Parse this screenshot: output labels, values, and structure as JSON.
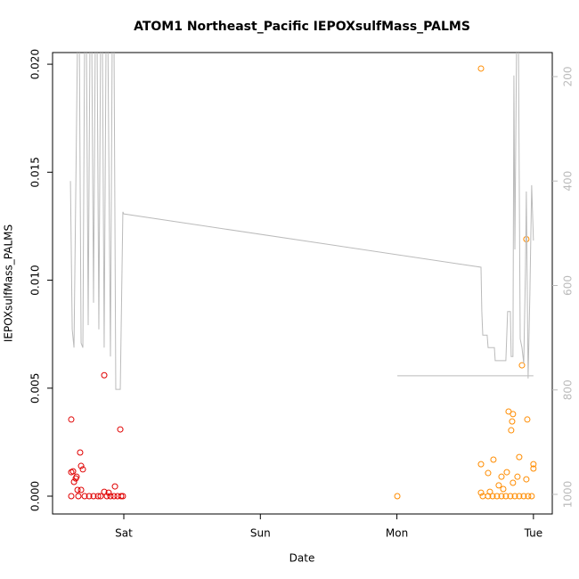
{
  "chart_data": {
    "type": "scatter",
    "title": "ATOM1 Northeast_Pacific IEPOXsulfMass_PALMS",
    "xlabel": "Date",
    "ylabel": "IEPOXsulfMass_PALMS",
    "xlim": [
      -0.522,
      3.138
    ],
    "xticks": [
      {
        "value": 0,
        "label": "Sat"
      },
      {
        "value": 1,
        "label": "Sun"
      },
      {
        "value": 2,
        "label": "Mon"
      },
      {
        "value": 3,
        "label": "Tue"
      }
    ],
    "ylim": [
      -0.000825,
      0.02054
    ],
    "yticks": [
      {
        "value": 0,
        "label": "0.000"
      },
      {
        "value": 0.005,
        "label": "0.005"
      },
      {
        "value": 0.01,
        "label": "0.010"
      },
      {
        "value": 0.015,
        "label": "0.015"
      },
      {
        "value": 0.02,
        "label": "0.020"
      }
    ],
    "y2lim": [
      1037.5,
      154
    ],
    "y2ticks": [
      200,
      400,
      600,
      800,
      1000
    ],
    "y2color": "#bbbbbb",
    "series": [
      {
        "style": "points",
        "color": "#e00000",
        "x": [
          -0.385,
          -0.385,
          -0.372,
          -0.352,
          -0.346,
          -0.365,
          -0.385,
          -0.32,
          -0.313,
          -0.3,
          -0.339,
          -0.313,
          -0.333,
          -0.287,
          -0.254,
          -0.222,
          -0.189,
          -0.17,
          -0.1435,
          -0.1435,
          -0.124,
          -0.098,
          -0.072,
          -0.046,
          -0.02,
          -0.007,
          -0.065,
          -0.026,
          -0.111
        ],
        "values": [
          0.00355,
          0.00111,
          0.00115,
          0.00082,
          0.0009,
          0.00066,
          0,
          0.00202,
          0.0014,
          0.00124,
          0.00029,
          0.00029,
          0,
          0,
          0,
          0,
          0,
          0,
          0.0056,
          0.0002,
          0,
          0,
          0,
          0,
          0,
          0,
          0.00045,
          0.00309,
          0.00016
        ]
      },
      {
        "style": "points",
        "color": "#ff8c00",
        "x": [
          2.003,
          2.616,
          2.948,
          2.916,
          2.818,
          2.85,
          2.955,
          2.844,
          2.837,
          2.896,
          2.707,
          2.616,
          3.0,
          3.0,
          2.805,
          2.668,
          2.766,
          2.883,
          2.948,
          2.746,
          2.85,
          2.779,
          2.681,
          2.616,
          2.629,
          2.668,
          2.701,
          2.733,
          2.766,
          2.798,
          2.831,
          2.864,
          2.896,
          2.929,
          2.961,
          2.987
        ],
        "values": [
          0,
          0.0198,
          0.0119,
          0.00606,
          0.00392,
          0.0038,
          0.00355,
          0.00346,
          0.00305,
          0.00181,
          0.00169,
          0.00148,
          0.00148,
          0.00128,
          0.00111,
          0.00107,
          0.0009,
          0.0009,
          0.00078,
          0.0005,
          0.00062,
          0.00033,
          0.0002,
          0.00016,
          0,
          0,
          0,
          0,
          0,
          0,
          0,
          0,
          0,
          0,
          0,
          0
        ]
      },
      {
        "style": "line",
        "color": "#bbbbbb",
        "axis": "y2",
        "x": [
          -0.391,
          -0.378,
          -0.365,
          -0.339,
          -0.326,
          -0.313,
          -0.3,
          -0.287,
          -0.274,
          -0.261,
          -0.248,
          -0.235,
          -0.222,
          -0.209,
          -0.196,
          -0.183,
          -0.17,
          -0.157,
          -0.144,
          -0.13,
          -0.117,
          -0.098,
          -0.085,
          -0.072,
          -0.059,
          -0.026,
          -0.007,
          0,
          2.616,
          2.622,
          2.629,
          2.661,
          2.668,
          2.714,
          2.72,
          2.798,
          2.811,
          2.831,
          2.837,
          2.85,
          2.857,
          2.864,
          2.877,
          2.89,
          2.896,
          2.903,
          2.916,
          2.929,
          2.942,
          2.948,
          2.961,
          2.974,
          2.987,
          3.0,
          null,
          2.003,
          3.0
        ],
        "values": [
          400,
          684,
          719,
          122,
          122,
          710,
          719,
          122,
          122,
          676,
          122,
          122,
          633,
          122,
          122,
          684,
          122,
          122,
          719,
          122,
          122,
          736,
          122,
          122,
          799,
          799,
          459,
          463,
          565,
          650,
          695,
          695,
          719,
          719,
          744,
          744,
          650,
          650,
          736,
          736,
          198,
          531,
          122,
          122,
          394,
          702,
          719,
          749,
          565,
          420,
          778,
          616,
          408,
          514,
          null,
          773,
          773
        ]
      }
    ]
  }
}
